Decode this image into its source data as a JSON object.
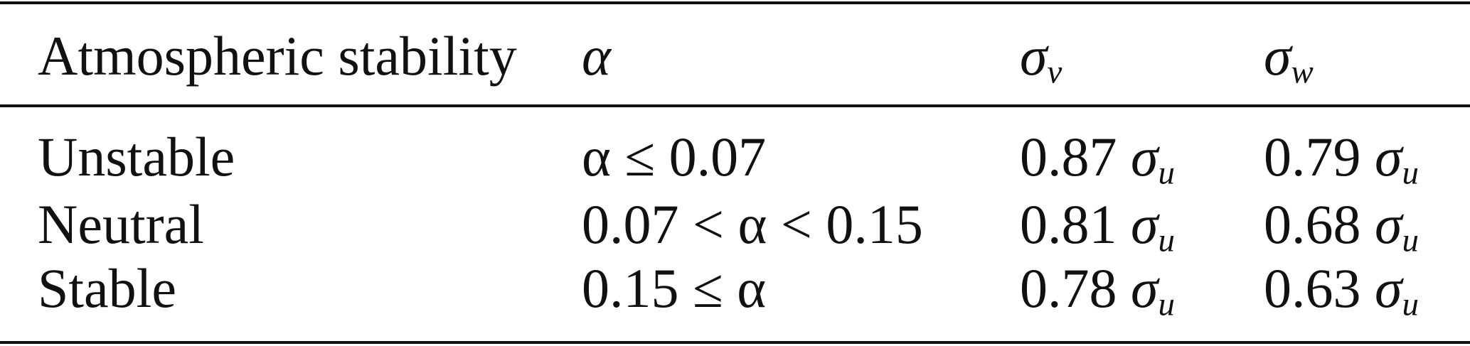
{
  "table": {
    "headers": [
      "Atmospheric stability",
      "α",
      "σ_v",
      "σ_w"
    ],
    "header_cells": {
      "stability": "Atmospheric stability",
      "alpha": "α",
      "sigma_v": {
        "symbol": "σ",
        "sub": "v"
      },
      "sigma_w": {
        "symbol": "σ",
        "sub": "w"
      }
    },
    "rows": [
      {
        "stability": "Unstable",
        "alpha": "α ≤ 0.07",
        "sigma_v": "0.87",
        "sigma_w": "0.79"
      },
      {
        "stability": "Neutral",
        "alpha": "0.07 < α < 0.15",
        "sigma_v": "0.81",
        "sigma_w": "0.68"
      },
      {
        "stability": "Stable",
        "alpha": "0.15 ≤ α",
        "sigma_v": "0.78",
        "sigma_w": "0.63"
      }
    ],
    "unit_symbol": "σ",
    "unit_sub": "u"
  }
}
